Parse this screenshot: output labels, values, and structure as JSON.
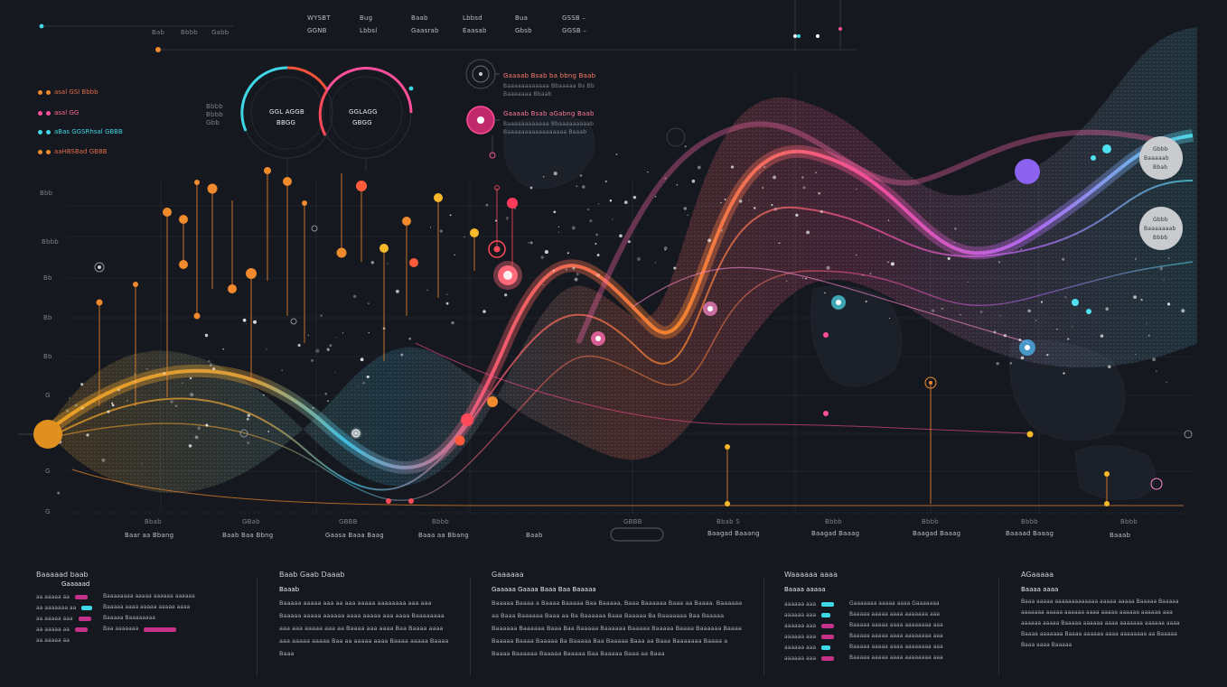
{
  "colors": {
    "bg": "#15181e",
    "orange": "#f08a2c",
    "pink": "#ff4f9a",
    "red": "#ff4a5a",
    "cyan": "#3fd6e6",
    "violet": "#a66bff",
    "yellow": "#f7b92a"
  },
  "top_header": {
    "col1": [
      "WYSBT",
      "GGNB"
    ],
    "col2": [
      "Bug",
      "Lbbsl"
    ],
    "col3": [
      "Baab",
      "Gaasrab"
    ],
    "col4": [
      "Lbbsd",
      "Eaasab"
    ],
    "col5": [
      "Bua",
      "Gbsb"
    ],
    "col6": [
      "GSSB –",
      "GGSB –"
    ],
    "ticks": [
      "Bab",
      "Bbbb",
      "Gabb"
    ]
  },
  "legend": [
    {
      "label": "asal GSl Bbbb",
      "color": "#f08a2c"
    },
    {
      "label": "asal GG",
      "color": "#ff4f9a"
    },
    {
      "label": "aBas GGSRhsal GBBB",
      "color": "#3fd6e6"
    },
    {
      "label": "aaHBSBad GBBB",
      "color": "#f08a2c"
    }
  ],
  "ring_labels": {
    "left_line1": "GGL AGGB",
    "left_line2": "BBGG",
    "right_line1": "GGLAGG",
    "right_line2": "GBGG",
    "side": [
      "Bbbb",
      "Bbbb",
      "Gbb"
    ]
  },
  "callouts": [
    {
      "title": "Gaaaab Bsab ba bbng Baab",
      "sub1": "Baaaaaaaaaaaa Bbaaaaa Bs Bb",
      "sub2": "Baaaaaaa Bbaab"
    },
    {
      "title": "Gaaaab Bsab aGabng Baab",
      "sub1": "Baaaaaaaaaaaa Bbaaaaaaaaab",
      "sub2": "Baaaaaaaaaaaaaaaaa Baaab"
    }
  ],
  "y_axis": [
    "Bbb",
    "Bbbb",
    "Bb",
    "Bb",
    "Bb",
    "G",
    "G",
    "G"
  ],
  "x_axis": [
    "Bbab",
    "GBab",
    "GBBB",
    "Bbbb",
    "GBBB",
    "Bbab S",
    "Bbbb",
    "Bbbb",
    "Bbbb",
    "Bbbb"
  ],
  "x_labels": [
    "Baar aa Bbang",
    "Baab Baa Bbng",
    "Gaasa Baaa Baag",
    "Baaa aa Bbang",
    "Baab",
    "Baagad Baaang",
    "Baagad Baaag",
    "Baagad Baaag",
    "Baaaad Baaag",
    "Baaab"
  ],
  "right_bubbles": [
    {
      "l1": "Gbbb",
      "l2": "Baaaaab",
      "l3": "Bbab"
    },
    {
      "l1": "Gbbb",
      "l2": "Baaaaaaab",
      "l3": "Bbbb"
    }
  ],
  "panels": [
    {
      "title": "Baaaaad baab",
      "sub": "Gaaaaad",
      "rows": [
        "aa aaaaa aa",
        "aa aaaaaaa aa",
        "aa aaaaa aaa",
        "aa aaaaa aa",
        "aa aaaaa aa"
      ],
      "rtext": [
        "Baaaaaaaa aaaaa aaaaaa aaaaaa",
        "Baaaaa aaaa aaaaa aaaaa aaaa",
        "Baaaaa Baaaaaaaa",
        "Baa aaaaaaa",
        "Baa"
      ]
    },
    {
      "title": "Baab Gaab Daaab",
      "sub": "Baaab",
      "text": "Baaaaa aaaaa aaa aa aaa aaaaa aaaaaaaa aaa aaa Baaaaa aaaaa aaaaaa aaaa aaaaa aaa aaaa Baaaaaaaa aaa aaa aaaaa aaa aa Baaaa aaa aaaa Baa Baaaa aaaa aaa aaaaa aaaaa Baa aa aaaaa aaaa Baaaa aaaaa Baaaa Baaa"
    },
    {
      "title": "Gaaaaaa",
      "sub": "Gaaaaa Gaaaa Baaa Baa Baaaaa",
      "text": "Baaaaa Baaaa a Baaaa Baaaaa Baa Baaaaa, Baaa Baaaaaa Baaa aa Baaaa. Baaaaaa aa Baaa Baaaaaa Baaa aa Ba Baaaaaa Baaa Baaaaa Ba Baaaaaaa Baa Baaaaa Baaaaaa Baaaaaa Baaa Baa Baaaaa Baaaaaa Baaaaa Baaaaa Baaaa Baaaaaa Baaaa Baaaaa Baaaa Baaaaa Ba Baaaaa Baa Baaaaa Baaa aa Baaa Baaaaaaa Baaaa a Baaaa Baaaaaa Baaaaa Baaaaa Baa Baaaaa Baaa aa Baaa"
    },
    {
      "title": "Waaaaaa aaaa",
      "sub": "Baaaa aaaaa",
      "rows": [
        "aaaaaa aaa",
        "aaaaaa aaa",
        "aaaaaa aaa",
        "aaaaaa aaa",
        "aaaaaa aaa",
        "aaaaaa aaa"
      ],
      "rtext": [
        "Gaaaaaaa aaaaa aaaa Gaaaaaaa",
        "Baaaaa aaaaa aaaa aaaaaaa aaa",
        "Baaaaa aaaaa aaaa aaaaaaaa aaa",
        "Baaaaa aaaaa aaaa aaaaaaaa aaa",
        "Baaaaa aaaaa aaaa aaaaaaaa aaa",
        "Baaaaa aaaaa aaaa aaaaaaaa aaa"
      ]
    },
    {
      "title": "AGaaaaa",
      "sub": "Baaaa aaaa",
      "text": "Baaa aaaaa aaaaaaaaaaaaa aaaaa aaaaa Baaaaa Baaaaa aaaaaaa aaaaa aaaaaa aaaa aaaaa aaaaaa aaaaaa aaa aaaaaa aaaaa Baaaaa aaaaaa aaaa aaaaaaa aaaaaa aaaa Baaaa aaaaaaa Baaaa aaaaaa aaaa aaaaaaaa aa Baaaaa Baaa aaaa Baaaaa"
    }
  ]
}
